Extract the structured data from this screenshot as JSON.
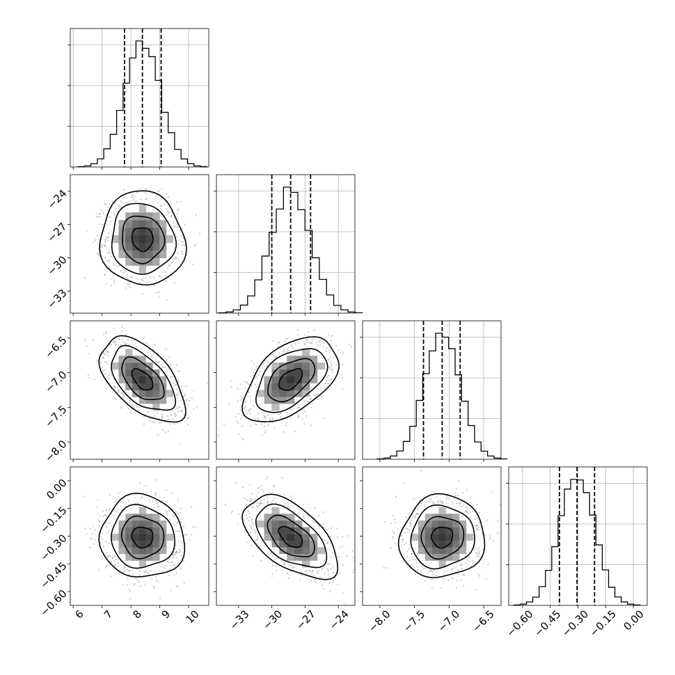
{
  "chart_data": {
    "type": "corner",
    "description_of_params": "4-parameter posterior corner plot",
    "parameters": [
      {
        "axis_range": [
          5.9,
          10.7
        ],
        "ticks": [
          "6",
          "7",
          "8",
          "9",
          "10"
        ],
        "tick_values": [
          6,
          7,
          8,
          9,
          10
        ],
        "mean": 8.4,
        "std": 0.62,
        "quantiles": [
          7.78,
          8.4,
          9.05
        ]
      },
      {
        "axis_range": [
          -35.0,
          -22.5
        ],
        "ticks": [
          "−33",
          "−30",
          "−27",
          "−24"
        ],
        "tick_values": [
          -33,
          -30,
          -27,
          -24
        ],
        "mean": -28.3,
        "std": 1.8,
        "quantiles": [
          -30.0,
          -28.3,
          -26.5
        ]
      },
      {
        "axis_range": [
          -8.25,
          -6.25
        ],
        "ticks": [
          "−8.0",
          "−7.5",
          "−7.0",
          "−6.5"
        ],
        "tick_values": [
          -8.0,
          -7.5,
          -7.0,
          -6.5
        ],
        "mean": -7.1,
        "std": 0.26,
        "quantiles": [
          -7.37,
          -7.1,
          -6.84
        ]
      },
      {
        "axis_range": [
          -0.675,
          0.075
        ],
        "ticks": [
          "−0.60",
          "−0.45",
          "−0.30",
          "−0.15",
          "0.00"
        ],
        "tick_values": [
          -0.6,
          -0.45,
          -0.3,
          -0.15,
          0.0
        ],
        "mean": -0.305,
        "std": 0.095,
        "quantiles": [
          -0.4,
          -0.305,
          -0.21
        ]
      }
    ],
    "correlations": [
      [
        0,
        1,
        -0.05
      ],
      [
        0,
        2,
        -0.55
      ],
      [
        0,
        3,
        -0.05
      ],
      [
        1,
        2,
        0.5
      ],
      [
        1,
        3,
        -0.55
      ],
      [
        2,
        3,
        0.05
      ]
    ],
    "contour_levels_sigma": [
      0.5,
      1.0,
      1.5,
      2.0
    ],
    "histogram_bins": 20,
    "grid": true,
    "quantile_line_style": "dashed",
    "colors": {
      "line": "#000000",
      "scatter": "#9e9e9e",
      "grid": "#b0b0b0",
      "frame": "#000000"
    }
  }
}
